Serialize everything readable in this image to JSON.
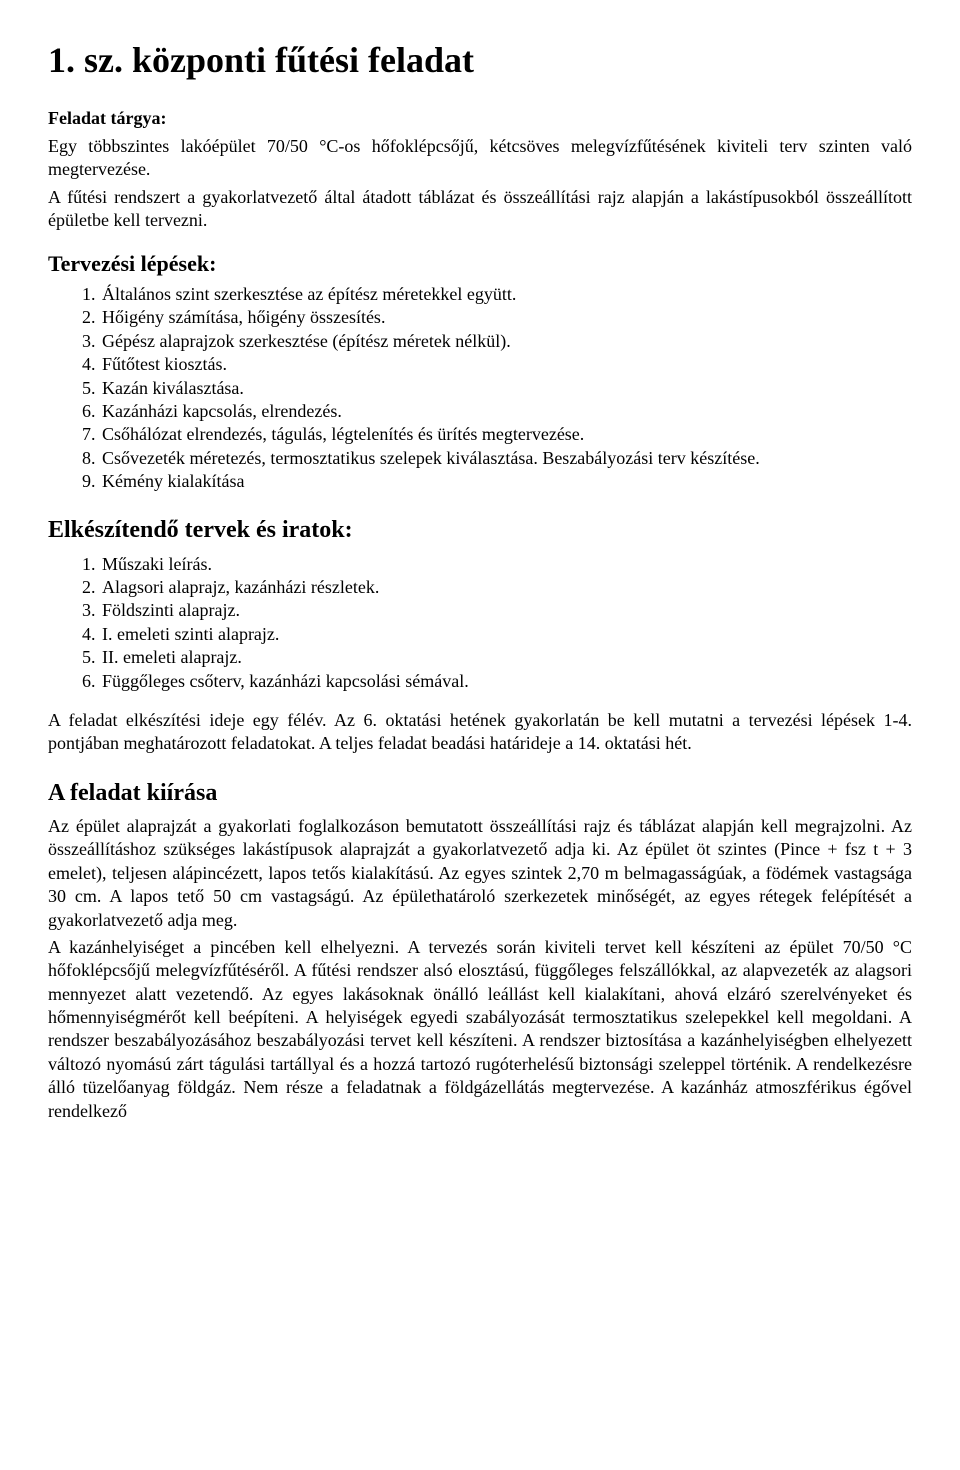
{
  "title": "1. sz. központi fűtési feladat",
  "subject": {
    "label": "Feladat tárgya:",
    "p1": "Egy többszintes lakóépület 70/50 °C-os hőfoklépcsőjű, kétcsöves melegvízfűtésének kiviteli terv szinten való megtervezése.",
    "p2": "A fűtési rendszert a gyakorlatvezető által átadott táblázat és összeállítási rajz alapján a lakástípusokból összeállított épületbe kell tervezni."
  },
  "steps": {
    "heading": "Tervezési lépések:",
    "items": [
      "Általános szint szerkesztése az építész méretekkel együtt.",
      "Hőigény számítása, hőigény összesítés.",
      "Gépész alaprajzok szerkesztése (építész méretek nélkül).",
      "Fűtőtest kiosztás.",
      "Kazán kiválasztása.",
      "Kazánházi kapcsolás, elrendezés.",
      "Csőhálózat elrendezés, tágulás, légtelenítés és ürítés megtervezése.",
      "Csővezeték méretezés, termosztatikus szelepek kiválasztása. Beszabályozási terv készítése.",
      "Kémény kialakítása"
    ]
  },
  "deliverables": {
    "heading": "Elkészítendő tervek és iratok:",
    "items": [
      "Műszaki leírás.",
      "Alagsori alaprajz, kazánházi részletek.",
      "Földszinti alaprajz.",
      "I. emeleti szinti alaprajz.",
      "II. emeleti alaprajz.",
      "Függőleges csőterv, kazánházi kapcsolási sémával."
    ]
  },
  "deadline": "A feladat elkészítési ideje egy félév. Az 6. oktatási hetének gyakorlatán be kell mutatni a tervezési lépések 1-4. pontjában meghatározott feladatokat. A teljes feladat beadási határideje a 14. oktatási hét.",
  "task": {
    "heading": "A feladat kiírása",
    "p1": "Az épület alaprajzát a gyakorlati foglalkozáson bemutatott összeállítási rajz és táblázat alapján kell megrajzolni. Az összeállításhoz szükséges lakástípusok alaprajzát a gyakorlatvezető adja ki. Az épület öt szintes (Pince + fsz t + 3 emelet), teljesen alápincézett, lapos tetős kialakítású. Az egyes szintek 2,70 m belmagasságúak, a födémek vastagsága 30 cm. A lapos tető 50 cm vastagságú. Az épülethatároló szerkezetek minőségét, az egyes rétegek felépítését a gyakorlatvezető adja meg.",
    "p2": "A kazánhelyiséget a pincében kell elhelyezni. A tervezés során kiviteli tervet kell készíteni az épület 70/50 °C hőfoklépcsőjű melegvízfűtéséről. A fűtési rendszer alsó elosztású, függőleges felszállókkal, az alapvezeték az alagsori mennyezet alatt vezetendő. Az egyes lakásoknak önálló leállást kell kialakítani, ahová elzáró szerelvényeket és hőmennyiségmérőt kell beépíteni. A helyiségek egyedi szabályozását termosztatikus szelepekkel kell megoldani. A rendszer beszabályozásához beszabályozási tervet kell készíteni. A rendszer biztosítása a kazánhelyiségben elhelyezett változó nyomású zárt tágulási tartállyal és a hozzá tartozó rugóterhelésű biztonsági szeleppel történik. A rendelkezésre álló tüzelőanyag földgáz. Nem része a feladatnak a földgázellátás megtervezése. A kazánház atmoszférikus égővel rendelkező"
  }
}
